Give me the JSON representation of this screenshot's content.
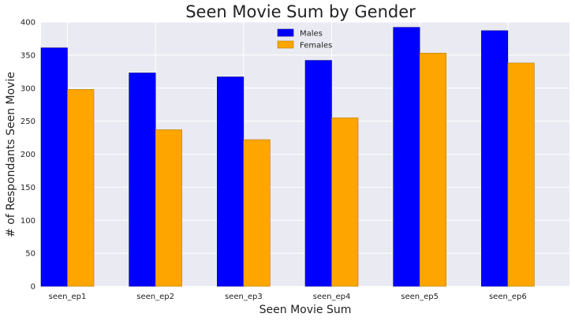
{
  "chart_data": {
    "type": "bar",
    "title": "Seen Movie Sum by Gender",
    "xlabel": "Seen Movie Sum",
    "ylabel": "# of Respondants Seen Movie",
    "categories": [
      "seen_ep1",
      "seen_ep2",
      "seen_ep3",
      "seen_ep4",
      "seen_ep5",
      "seen_ep6"
    ],
    "series": [
      {
        "name": "Males",
        "color": "#0000ff",
        "values": [
          361,
          323,
          317,
          342,
          392,
          387
        ]
      },
      {
        "name": "Females",
        "color": "#ffa500",
        "values": [
          298,
          237,
          222,
          255,
          353,
          338
        ]
      }
    ],
    "ylim": [
      0,
      400
    ],
    "yticks": [
      0,
      50,
      100,
      150,
      200,
      250,
      300,
      350,
      400
    ],
    "grid": true,
    "legend_position": "top-center",
    "background": "#eaeaf2"
  }
}
